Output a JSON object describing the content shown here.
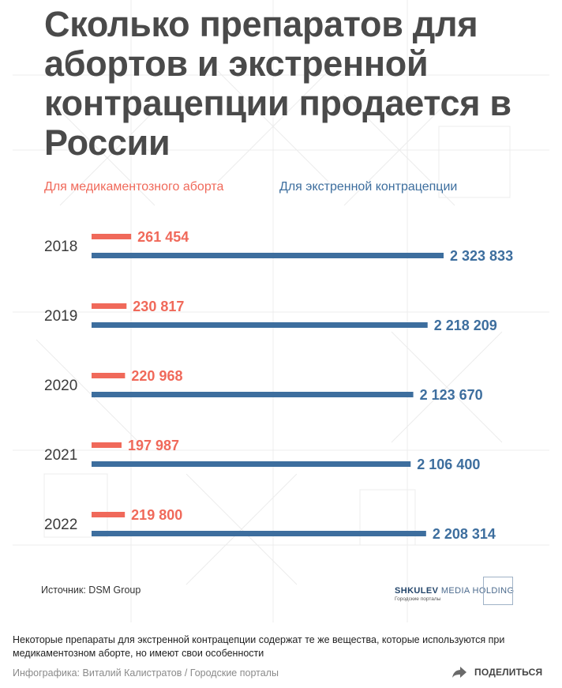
{
  "colors": {
    "title": "#4a4a4a",
    "abortion": "#f0695a",
    "emergency": "#3d6e9e",
    "year_text": "#3a3a3a",
    "background_lines": "#ededed"
  },
  "infographic": {
    "title": "Сколько препаратов для абортов и экстренной контрацепции продается в России",
    "source": "Источник: DSM Group",
    "logo": {
      "name_bold": "SHKULEV",
      "name_light": " MEDIA HOLDING",
      "sub": "Городские порталы"
    }
  },
  "chart_data": {
    "type": "bar",
    "orientation": "horizontal",
    "categories": [
      "2018",
      "2019",
      "2020",
      "2021",
      "2022"
    ],
    "series": [
      {
        "name": "Для медикаментозного аборта",
        "color": "#f0695a",
        "values": [
          261454,
          230817,
          220968,
          197987,
          219800
        ],
        "labels": [
          "261 454",
          "230 817",
          "220 968",
          "197 987",
          "219 800"
        ]
      },
      {
        "name": "Для экстренной контрацепции",
        "color": "#3d6e9e",
        "values": [
          2323833,
          2218209,
          2123670,
          2106400,
          2208314
        ],
        "labels": [
          "2 323 833",
          "2 218 209",
          "2 123 670",
          "2 106 400",
          "2 208 314"
        ]
      }
    ],
    "legend_position": "top",
    "grid": false
  },
  "caption": {
    "text": "Некоторые препараты для экстренной контрацепции содержат те же вещества, которые используются при медикаментозном аборте, но имеют свои особенности",
    "credit": "Инфографика: Виталий Калистратов / Городские порталы"
  },
  "share": {
    "label": "ПОДЕЛИТЬСЯ",
    "icon": "share-arrow-icon"
  }
}
